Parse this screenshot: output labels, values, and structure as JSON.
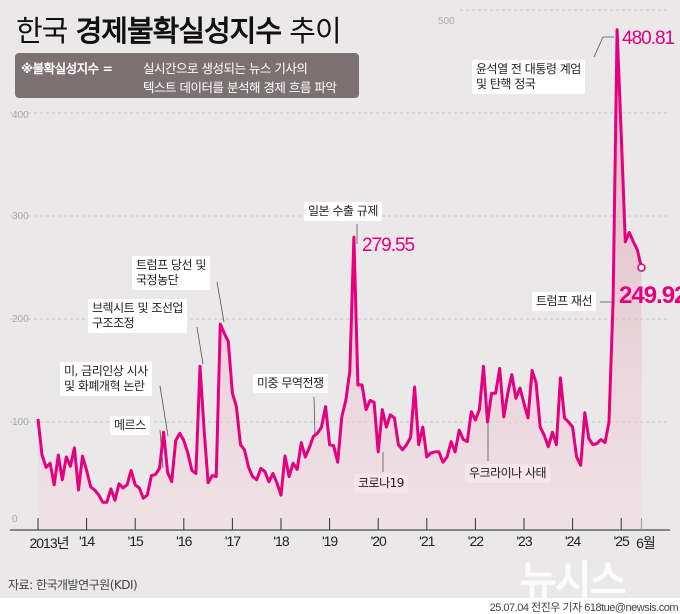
{
  "header": {
    "title_pre": "한국",
    "title_bold": "경제불확실성지수",
    "title_post": "추이",
    "def_key": "※불확실성지수 =",
    "def_line1": "실시간으로 생성되는 뉴스 기사의",
    "def_line2": "텍스트 데이터를 분석해 경제 흐름 파악"
  },
  "colors": {
    "line": "#e4007f",
    "background": "#ebe8e9",
    "subtitle_box": "#7b7173"
  },
  "chart_data": {
    "type": "line",
    "title": "한국 경제불확실성지수 추이",
    "start": "2013-01",
    "end": "2025-06",
    "frequency": "monthly",
    "ylim": [
      0,
      500
    ],
    "yticks": [
      "0",
      "100",
      "200",
      "300",
      "400",
      "500"
    ],
    "xticks": [
      "2013년",
      "'14",
      "'15",
      "'16",
      "'17",
      "'18",
      "'19",
      "'20",
      "'21",
      "'22",
      "'23",
      "'24",
      "'25",
      "6월"
    ],
    "grid": true,
    "values": [
      103,
      68,
      56,
      60,
      39,
      68,
      44,
      66,
      57,
      75,
      34,
      67,
      53,
      37,
      34,
      29,
      22,
      22,
      35,
      24,
      40,
      36,
      39,
      53,
      39,
      36,
      26,
      29,
      48,
      49,
      55,
      90,
      51,
      42,
      82,
      89,
      82,
      70,
      53,
      50,
      154,
      94,
      41,
      48,
      47,
      195,
      186,
      178,
      128,
      115,
      78,
      73,
      56,
      47,
      44,
      55,
      52,
      42,
      50,
      41,
      29,
      67,
      47,
      60,
      54,
      80,
      66,
      75,
      86,
      89,
      95,
      115,
      78,
      77,
      61,
      105,
      121,
      149,
      279.55,
      136,
      136,
      112,
      121,
      119,
      71,
      112,
      95,
      107,
      104,
      78,
      73,
      78,
      85,
      134,
      78,
      95,
      66,
      70,
      71,
      71,
      61,
      66,
      81,
      71,
      92,
      83,
      81,
      110,
      102,
      112,
      154,
      100,
      128,
      128,
      152,
      105,
      128,
      146,
      123,
      133,
      118,
      104,
      150,
      138,
      95,
      87,
      76,
      90,
      78,
      143,
      104,
      100,
      95,
      66,
      58,
      109,
      84,
      78,
      79,
      83,
      80,
      100,
      218,
      480.81,
      380,
      275,
      284,
      275,
      267,
      249.92
    ],
    "annotations": [
      {
        "text": "메르스"
      },
      {
        "text1": "미, 금리인상 시사",
        "text2": "및 화폐개혁 논란"
      },
      {
        "text1": "브렉시트 및 조선업",
        "text2": "구조조정"
      },
      {
        "text1": "트럼프 당선 및",
        "text2": "국정농단"
      },
      {
        "text": "미중 무역전쟁"
      },
      {
        "text": "일본 수출 규제",
        "value": "279.55"
      },
      {
        "text": "코로나19"
      },
      {
        "text": "우크라이나 사태"
      },
      {
        "text1": "윤석열 전 대통령 계엄",
        "text2": "및 탄핵 정국",
        "value": "480.81"
      },
      {
        "text": "트럼프 재선",
        "value": "249.92"
      }
    ]
  },
  "footer": {
    "source": "자료: 한국개발연구원(KDI)",
    "watermark": "뉴시스",
    "credit": "25.07.04 전진우 기자 618tue@newsis.com"
  }
}
